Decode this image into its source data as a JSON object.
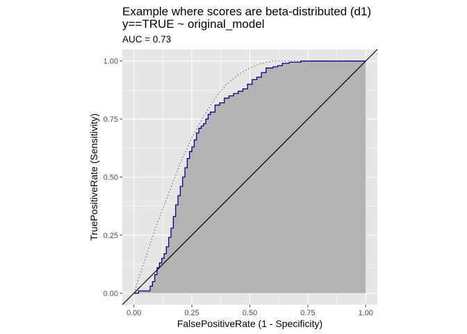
{
  "chart_data": {
    "type": "line",
    "title": "Example where scores are beta-distributed (d1)",
    "subtitle": "y==TRUE ~ original_model",
    "caption": "AUC = 0.73",
    "xlabel": "FalsePositiveRate (1 - Specificity)",
    "ylabel": "TruePositiveRate (Sensitivity)",
    "xlim": [
      -0.05,
      1.05
    ],
    "ylim": [
      -0.05,
      1.05
    ],
    "x_ticks": [
      0,
      0.25,
      0.5,
      0.75,
      1
    ],
    "x_tick_labels": [
      "0.00",
      "0.25",
      "0.50",
      "0.75",
      "1.00"
    ],
    "y_ticks": [
      0,
      0.25,
      0.5,
      0.75,
      1
    ],
    "y_tick_labels": [
      "0.00",
      "0.25",
      "0.50",
      "0.75",
      "1.00"
    ],
    "grid": true,
    "colors": {
      "panel_background": "#e6e6e6",
      "grid": "#ffffff",
      "roc_line": "#00008b",
      "roc_fill": "#b3b3b3",
      "diagonal": "#000000",
      "ideal_curve": "#555555"
    },
    "series": [
      {
        "style": "step",
        "x": [
          0.0,
          0.02,
          0.02,
          0.07,
          0.08,
          0.09,
          0.1,
          0.11,
          0.12,
          0.13,
          0.14,
          0.15,
          0.16,
          0.17,
          0.18,
          0.19,
          0.2,
          0.21,
          0.22,
          0.23,
          0.24,
          0.25,
          0.26,
          0.27,
          0.28,
          0.29,
          0.3,
          0.31,
          0.32,
          0.33,
          0.35,
          0.37,
          0.39,
          0.41,
          0.43,
          0.45,
          0.47,
          0.49,
          0.51,
          0.53,
          0.55,
          0.57,
          0.6,
          0.62,
          0.64,
          0.67,
          0.7,
          0.72,
          0.75,
          0.8,
          0.85,
          0.9,
          0.95,
          1.0
        ],
        "y": [
          0.0,
          0.0,
          0.01,
          0.03,
          0.05,
          0.08,
          0.11,
          0.13,
          0.15,
          0.17,
          0.2,
          0.24,
          0.28,
          0.33,
          0.38,
          0.42,
          0.46,
          0.5,
          0.54,
          0.58,
          0.61,
          0.63,
          0.66,
          0.69,
          0.71,
          0.72,
          0.73,
          0.75,
          0.77,
          0.78,
          0.81,
          0.82,
          0.84,
          0.85,
          0.86,
          0.87,
          0.88,
          0.9,
          0.92,
          0.93,
          0.95,
          0.97,
          0.975,
          0.98,
          0.99,
          0.995,
          0.995,
          1.0,
          1.0,
          1.0,
          1.0,
          1.0,
          1.0,
          1.0
        ]
      },
      {
        "style": "dotted",
        "x": [
          0.0,
          0.05,
          0.1,
          0.15,
          0.2,
          0.25,
          0.3,
          0.35,
          0.4,
          0.45,
          0.5,
          0.55,
          0.6,
          0.65,
          0.7,
          1.0
        ],
        "y": [
          0.0,
          0.15,
          0.3,
          0.43,
          0.56,
          0.67,
          0.76,
          0.84,
          0.9,
          0.94,
          0.97,
          0.99,
          1.0,
          1.0,
          1.0,
          1.0
        ]
      },
      {
        "style": "diagonal",
        "x": [
          -0.05,
          1.05
        ],
        "y": [
          -0.05,
          1.05
        ]
      }
    ]
  }
}
